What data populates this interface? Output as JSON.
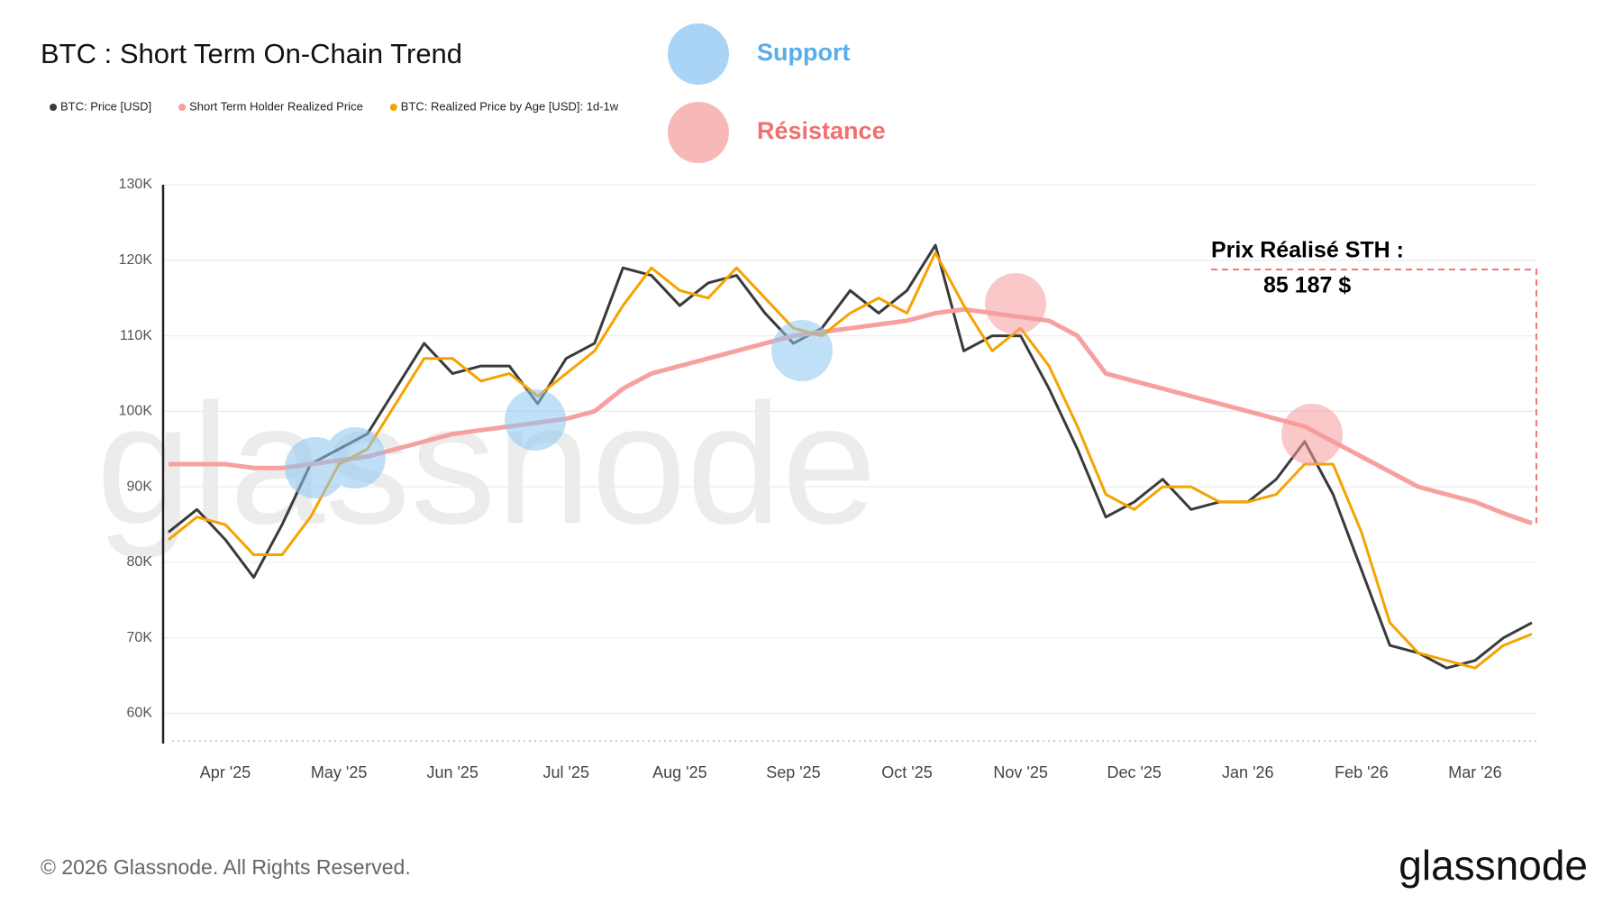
{
  "chart_data": {
    "type": "line",
    "title": "BTC : Short Term On-Chain Trend",
    "categories": [
      null,
      null,
      "Apr '25",
      null,
      null,
      null,
      "May '25",
      null,
      null,
      null,
      "Jun '25",
      null,
      null,
      null,
      "Jul '25",
      null,
      null,
      null,
      "Aug '25",
      null,
      null,
      null,
      "Sep '25",
      null,
      null,
      null,
      "Oct '25",
      null,
      null,
      null,
      "Nov '25",
      null,
      null,
      null,
      "Dec '25",
      null,
      null,
      null,
      "Jan '26",
      null,
      null,
      null,
      "Feb '26",
      null,
      null,
      null,
      "Mar '26",
      null,
      null
    ],
    "series": [
      {
        "name": "BTC: Price [USD]",
        "color": "#3a3a3a",
        "values": [
          84000,
          87000,
          83000,
          78000,
          85000,
          93000,
          95000,
          97000,
          103000,
          109000,
          105000,
          106000,
          106000,
          101000,
          107000,
          109000,
          119000,
          118000,
          114000,
          117000,
          118000,
          113000,
          109000,
          111000,
          116000,
          113000,
          116000,
          122000,
          108000,
          110000,
          110000,
          103000,
          95000,
          86000,
          88000,
          91000,
          87000,
          88000,
          88000,
          91000,
          96000,
          89000,
          79000,
          69000,
          68000,
          66000,
          67000,
          70000,
          72000
        ]
      },
      {
        "name": "Short Term Holder Realized Price",
        "color": "#f7a0a0",
        "values": [
          93000,
          93000,
          93000,
          92500,
          92500,
          93000,
          93500,
          94000,
          95000,
          96000,
          97000,
          97500,
          98000,
          98500,
          99000,
          100000,
          103000,
          105000,
          106000,
          107000,
          108000,
          109000,
          110000,
          110500,
          111000,
          111500,
          112000,
          113000,
          113500,
          113000,
          112500,
          112000,
          110000,
          105000,
          104000,
          103000,
          102000,
          101000,
          100000,
          99000,
          98000,
          96000,
          94000,
          92000,
          90000,
          89000,
          88000,
          86500,
          85187
        ]
      },
      {
        "name": "BTC: Realized Price by Age [USD]: 1d-1w",
        "color": "#f5a300",
        "values": [
          83000,
          86000,
          85000,
          81000,
          81000,
          86000,
          93000,
          95000,
          101000,
          107000,
          107000,
          104000,
          105000,
          102000,
          105000,
          108000,
          114000,
          119000,
          116000,
          115000,
          119000,
          115000,
          111000,
          110000,
          113000,
          115000,
          113000,
          121000,
          114000,
          108000,
          111000,
          106000,
          98000,
          89000,
          87000,
          90000,
          90000,
          88000,
          88000,
          89000,
          93000,
          93000,
          84000,
          72000,
          68000,
          67000,
          66000,
          69000,
          70500
        ]
      }
    ],
    "ylim": [
      56000,
      130000
    ],
    "yticks": [
      {
        "value": 60000,
        "label": "60K"
      },
      {
        "value": 70000,
        "label": "70K"
      },
      {
        "value": 80000,
        "label": "80K"
      },
      {
        "value": 90000,
        "label": "90K"
      },
      {
        "value": 100000,
        "label": "100K"
      },
      {
        "value": 110000,
        "label": "110K"
      },
      {
        "value": 120000,
        "label": "120K"
      },
      {
        "value": 130000,
        "label": "130K"
      }
    ],
    "grid": true,
    "annotations": {
      "support": "Support",
      "resistance": "Résistance",
      "sth_label": "Prix Réalisé STH :",
      "sth_value": "85 187 $"
    }
  },
  "footer": {
    "copyright": "© 2026 Glassnode. All Rights Reserved.",
    "logo": "glassnode"
  }
}
